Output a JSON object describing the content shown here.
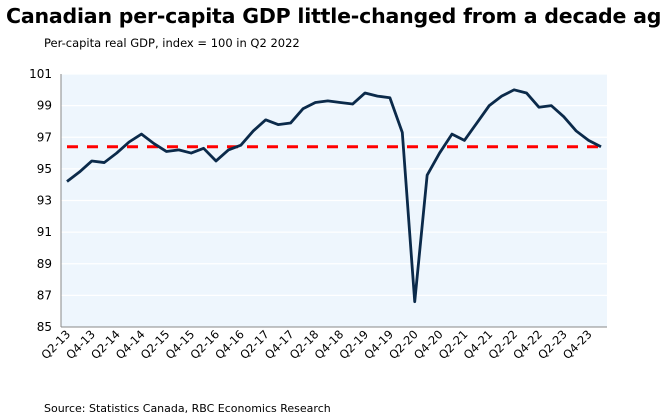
{
  "chart_data": {
    "type": "line",
    "title": "Canadian per-capita GDP little-changed from a decade ago",
    "subtitle": "Per-capita real GDP, index = 100 in Q2 2022",
    "source": "Source: Statistics Canada, RBC Economics Research",
    "xlabel": "",
    "ylabel": "",
    "ylim": [
      85,
      101
    ],
    "yticks": [
      85,
      87,
      89,
      91,
      93,
      95,
      97,
      99,
      101
    ],
    "x": [
      "Q2-13",
      "Q3-13",
      "Q4-13",
      "Q1-14",
      "Q2-14",
      "Q3-14",
      "Q4-14",
      "Q1-15",
      "Q2-15",
      "Q3-15",
      "Q4-15",
      "Q1-16",
      "Q2-16",
      "Q3-16",
      "Q4-16",
      "Q1-17",
      "Q2-17",
      "Q3-17",
      "Q4-17",
      "Q1-18",
      "Q2-18",
      "Q3-18",
      "Q4-18",
      "Q1-19",
      "Q2-19",
      "Q3-19",
      "Q4-19",
      "Q1-20",
      "Q2-20",
      "Q3-20",
      "Q4-20",
      "Q1-21",
      "Q2-21",
      "Q3-21",
      "Q4-21",
      "Q1-22",
      "Q2-22",
      "Q3-22",
      "Q4-22",
      "Q1-23",
      "Q2-23",
      "Q3-23",
      "Q4-23",
      "Q1-24"
    ],
    "xticklabels": [
      "Q2-13",
      "Q4-13",
      "Q2-14",
      "Q4-14",
      "Q2-15",
      "Q4-15",
      "Q2-16",
      "Q4-16",
      "Q2-17",
      "Q4-17",
      "Q2-18",
      "Q4-18",
      "Q2-19",
      "Q4-19",
      "Q2-20",
      "Q4-20",
      "Q2-21",
      "Q4-21",
      "Q2-22",
      "Q4-22",
      "Q2-23",
      "Q4-23"
    ],
    "series": [
      {
        "values": [
          94.2,
          94.8,
          95.5,
          95.4,
          96.0,
          96.7,
          97.2,
          96.6,
          96.1,
          96.2,
          96.0,
          96.3,
          95.5,
          96.2,
          96.5,
          97.4,
          98.1,
          97.8,
          97.9,
          98.8,
          99.2,
          99.3,
          99.2,
          99.1,
          99.8,
          99.6,
          99.5,
          97.3,
          86.6,
          94.6,
          96.0,
          97.2,
          96.8,
          97.9,
          99.0,
          99.6,
          100.0,
          99.8,
          98.9,
          99.0,
          98.3,
          97.4,
          96.8,
          96.4
        ],
        "color": "#0b2a4a"
      }
    ],
    "reference_line": {
      "value": 96.4,
      "color": "#ff0000",
      "style": "dashed"
    },
    "background": "#eef6fd",
    "grid": true,
    "legend": "none"
  }
}
